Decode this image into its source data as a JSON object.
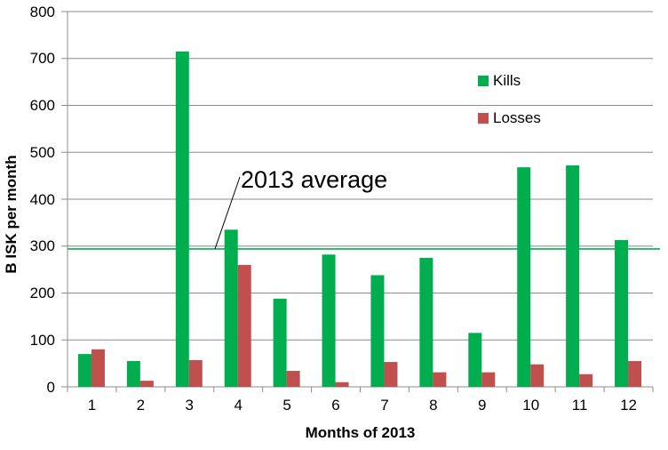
{
  "chart_data": {
    "type": "bar",
    "title": "",
    "xlabel": "Months of 2013",
    "ylabel": "B ISK per month",
    "categories": [
      "1",
      "2",
      "3",
      "4",
      "5",
      "6",
      "7",
      "8",
      "9",
      "10",
      "11",
      "12"
    ],
    "series": [
      {
        "name": "Kills",
        "color": "#00AE50",
        "values": [
          70,
          55,
          715,
          335,
          188,
          282,
          238,
          275,
          115,
          468,
          472,
          313
        ]
      },
      {
        "name": "Losses",
        "color": "#C0504D",
        "values": [
          80,
          13,
          57,
          260,
          34,
          10,
          53,
          31,
          31,
          48,
          27,
          55
        ]
      }
    ],
    "ylim": [
      0,
      800
    ],
    "ytick_step": 100,
    "grid": "horizontal",
    "gridline_color": "#8C8C8C",
    "axis_color": "#8C8C8C",
    "legend_position": "inside-top-right",
    "annotation": {
      "text": "2013 average",
      "value": 294,
      "line_color": "#00B050",
      "leader_color": "#000000"
    }
  }
}
